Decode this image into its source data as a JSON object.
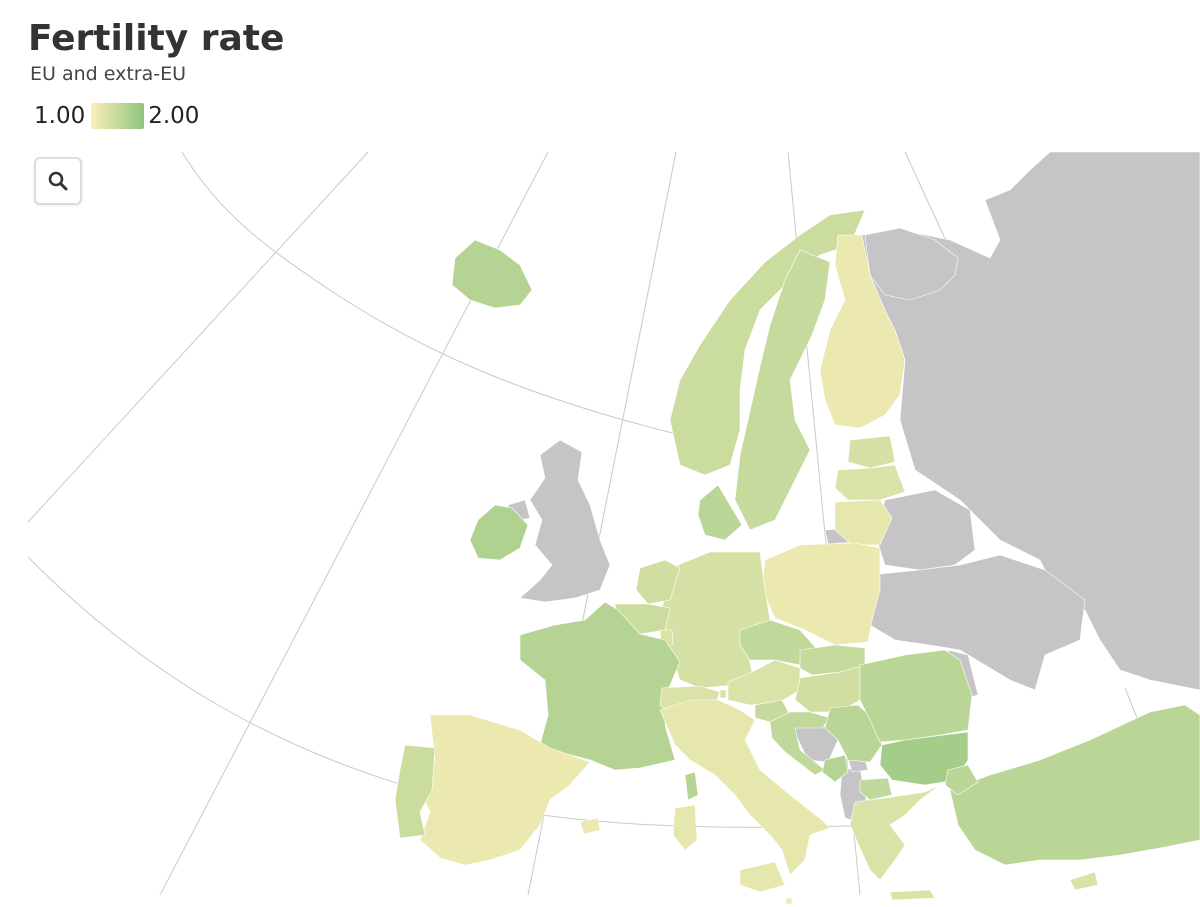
{
  "title": "Fertility rate",
  "subtitle": "EU and extra-EU",
  "legend": {
    "min_label": "1.00",
    "max_label": "2.00",
    "min_value": 1.0,
    "max_value": 2.0,
    "color_low": "#fbefb8",
    "color_high": "#8fc57f",
    "color_nodata": "#c6c4c6"
  },
  "zoom_button": {
    "icon": "search-icon"
  },
  "map": {
    "type": "choropleth",
    "region": "Europe",
    "values": {
      "Iceland": 1.65,
      "Ireland": 1.7,
      "Norway": 1.45,
      "Sweden": 1.5,
      "Finland": 1.15,
      "Denmark": 1.6,
      "Estonia": 1.35,
      "Latvia": 1.3,
      "Lithuania": 1.2,
      "Poland": 1.15,
      "Germany": 1.35,
      "Netherlands": 1.4,
      "Belgium": 1.45,
      "Luxembourg": 1.3,
      "France": 1.65,
      "Switzerland": 1.3,
      "Liechtenstein": 1.3,
      "Austria": 1.3,
      "Czechia": 1.55,
      "Slovakia": 1.5,
      "Hungary": 1.4,
      "Slovenia": 1.5,
      "Croatia": 1.55,
      "Serbia": 1.6,
      "Romania": 1.6,
      "Bulgaria": 1.8,
      "Montenegro": 1.65,
      "North Macedonia": 1.55,
      "Italy": 1.2,
      "Malta": 1.1,
      "Spain": 1.15,
      "Portugal": 1.45,
      "Greece": 1.3,
      "Cyprus": 1.3,
      "Türkiye": 1.6
    },
    "no_data": [
      "United Kingdom",
      "Belarus",
      "Ukraine",
      "Moldova",
      "Russia",
      "Bosnia and Herzegovina",
      "Albania",
      "Kosovo"
    ]
  }
}
